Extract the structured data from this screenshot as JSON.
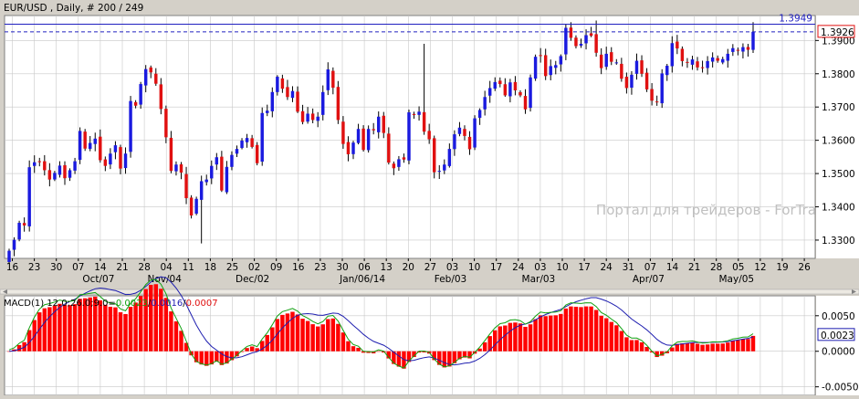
{
  "header": {
    "title": "EUR/USD , Daily, # 200 / 249"
  },
  "watermark": "Портал для трейдеров - ForTrader.ru",
  "colors": {
    "bull": "#1a1adf",
    "bear": "#e01010",
    "grid": "#c8c8c8",
    "macd_line": "#1f1fb0",
    "signal_line": "#10a010",
    "hist": "#ff0000",
    "hline": "#2020c0",
    "frame_bg": "#ffffff"
  },
  "chart_data": [
    {
      "type": "candlestick",
      "symbol": "EUR/USD",
      "timeframe": "Daily",
      "ylim": [
        1.3245,
        1.3975
      ],
      "y_ticks": [
        "1.3300",
        "1.3400",
        "1.3500",
        "1.3600",
        "1.3700",
        "1.3800",
        "1.3900"
      ],
      "x_ticks": [
        "16",
        "23",
        "30",
        "07",
        "14",
        "21",
        "28",
        "04",
        "11",
        "18",
        "25",
        "02",
        "09",
        "16",
        "23",
        "30",
        "06",
        "13",
        "20",
        "27",
        "03",
        "10",
        "17",
        "24",
        "03",
        "10",
        "17",
        "24",
        "31",
        "07",
        "14",
        "21",
        "28",
        "05",
        "12",
        "19",
        "26"
      ],
      "x_month_labels": [
        "Oct/07",
        "Nov/04",
        "Dec/02",
        "Jan/06/14",
        "Feb/03",
        "Mar/03",
        "Apr/07",
        "May/05"
      ],
      "horizontal_line": {
        "value": 1.3949,
        "label": "1.3949"
      },
      "current_price": {
        "value": 1.3926,
        "label": "1.3926"
      },
      "closes": [
        1.3268,
        1.3301,
        1.3352,
        1.3344,
        1.3519,
        1.3534,
        1.3537,
        1.351,
        1.3482,
        1.3502,
        1.3524,
        1.3486,
        1.351,
        1.3537,
        1.3628,
        1.3575,
        1.3592,
        1.3605,
        1.354,
        1.3523,
        1.356,
        1.3585,
        1.3515,
        1.356,
        1.3718,
        1.3704,
        1.3769,
        1.3814,
        1.3804,
        1.377,
        1.3694,
        1.3609,
        1.3508,
        1.3527,
        1.3503,
        1.3426,
        1.3374,
        1.3424,
        1.3477,
        1.3482,
        1.3523,
        1.3549,
        1.3449,
        1.352,
        1.3556,
        1.3574,
        1.3599,
        1.3607,
        1.358,
        1.3531,
        1.3682,
        1.3689,
        1.3745,
        1.3791,
        1.3755,
        1.373,
        1.3748,
        1.3686,
        1.3655,
        1.368,
        1.3661,
        1.3671,
        1.3745,
        1.3813,
        1.3758,
        1.3661,
        1.3589,
        1.3558,
        1.3593,
        1.3634,
        1.3571,
        1.3634,
        1.363,
        1.3671,
        1.3622,
        1.3533,
        1.3516,
        1.3543,
        1.3542,
        1.3684,
        1.3676,
        1.3686,
        1.3626,
        1.3603,
        1.3504,
        1.3508,
        1.3527,
        1.3574,
        1.3618,
        1.3638,
        1.3613,
        1.3573,
        1.3666,
        1.3691,
        1.373,
        1.3757,
        1.3775,
        1.3769,
        1.3735,
        1.3774,
        1.375,
        1.3735,
        1.3693,
        1.3789,
        1.3851,
        1.3854,
        1.3793,
        1.3823,
        1.3826,
        1.3853,
        1.3938,
        1.3908,
        1.3883,
        1.389,
        1.3916,
        1.3914,
        1.3863,
        1.3817,
        1.386,
        1.3836,
        1.3834,
        1.3785,
        1.3757,
        1.3797,
        1.3839,
        1.38,
        1.3753,
        1.3719,
        1.3715,
        1.3801,
        1.3824,
        1.3892,
        1.3876,
        1.3838,
        1.3833,
        1.3843,
        1.3819,
        1.3817,
        1.3838,
        1.3849,
        1.3839,
        1.3844,
        1.386,
        1.3877,
        1.387,
        1.388,
        1.3872,
        1.3926
      ]
    },
    {
      "type": "line",
      "indicator": "MACD",
      "legend_text": "MACD(1) 12.0;26.0;9.0=",
      "legend_values": [
        {
          "text": "0.0023",
          "color": "#10a010"
        },
        {
          "text": "0.0016",
          "color": "#1f1fb0"
        },
        {
          "text": "0.0007",
          "color": "#e01010"
        }
      ],
      "series_separator": "/",
      "ylim": [
        -0.0062,
        0.0078
      ],
      "y_ticks": [
        "0.0050",
        "0.0000",
        "-0.0050"
      ],
      "current_value": {
        "value": 0.0023,
        "label": "0.0023"
      }
    }
  ]
}
